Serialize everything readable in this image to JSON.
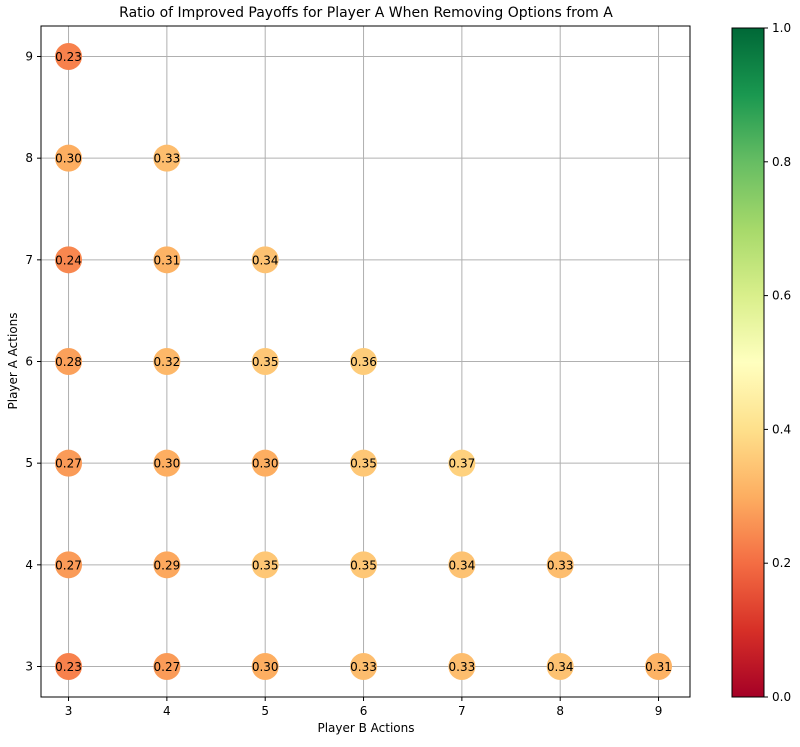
{
  "chart_data": {
    "type": "scatter",
    "title": "Ratio of Improved Payoffs for Player A When Removing Options from A",
    "xlabel": "Player B Actions",
    "ylabel": "Player A Actions",
    "xlim": [
      2.72,
      9.32
    ],
    "ylim": [
      2.7,
      9.3
    ],
    "xticks": [
      "3",
      "4",
      "5",
      "6",
      "7",
      "8",
      "9"
    ],
    "yticks": [
      "3",
      "4",
      "5",
      "6",
      "7",
      "8",
      "9"
    ],
    "grid": true,
    "colormap": "RdYlGn",
    "color_range": [
      0.0,
      1.0
    ],
    "colorbar_ticks": [
      "0.0",
      "0.2",
      "0.4",
      "0.6",
      "0.8",
      "1.0"
    ],
    "points": [
      {
        "x": 3,
        "y": 9,
        "value": 0.23,
        "label": "0.23"
      },
      {
        "x": 3,
        "y": 8,
        "value": 0.3,
        "label": "0.30"
      },
      {
        "x": 4,
        "y": 8,
        "value": 0.33,
        "label": "0.33"
      },
      {
        "x": 3,
        "y": 7,
        "value": 0.24,
        "label": "0.24"
      },
      {
        "x": 4,
        "y": 7,
        "value": 0.31,
        "label": "0.31"
      },
      {
        "x": 5,
        "y": 7,
        "value": 0.34,
        "label": "0.34"
      },
      {
        "x": 3,
        "y": 6,
        "value": 0.28,
        "label": "0.28"
      },
      {
        "x": 4,
        "y": 6,
        "value": 0.32,
        "label": "0.32"
      },
      {
        "x": 5,
        "y": 6,
        "value": 0.35,
        "label": "0.35"
      },
      {
        "x": 6,
        "y": 6,
        "value": 0.36,
        "label": "0.36"
      },
      {
        "x": 3,
        "y": 5,
        "value": 0.27,
        "label": "0.27"
      },
      {
        "x": 4,
        "y": 5,
        "value": 0.3,
        "label": "0.30"
      },
      {
        "x": 5,
        "y": 5,
        "value": 0.3,
        "label": "0.30"
      },
      {
        "x": 6,
        "y": 5,
        "value": 0.35,
        "label": "0.35"
      },
      {
        "x": 7,
        "y": 5,
        "value": 0.37,
        "label": "0.37"
      },
      {
        "x": 3,
        "y": 4,
        "value": 0.27,
        "label": "0.27"
      },
      {
        "x": 4,
        "y": 4,
        "value": 0.29,
        "label": "0.29"
      },
      {
        "x": 5,
        "y": 4,
        "value": 0.35,
        "label": "0.35"
      },
      {
        "x": 6,
        "y": 4,
        "value": 0.35,
        "label": "0.35"
      },
      {
        "x": 7,
        "y": 4,
        "value": 0.34,
        "label": "0.34"
      },
      {
        "x": 8,
        "y": 4,
        "value": 0.33,
        "label": "0.33"
      },
      {
        "x": 3,
        "y": 3,
        "value": 0.23,
        "label": "0.23"
      },
      {
        "x": 4,
        "y": 3,
        "value": 0.27,
        "label": "0.27"
      },
      {
        "x": 5,
        "y": 3,
        "value": 0.3,
        "label": "0.30"
      },
      {
        "x": 6,
        "y": 3,
        "value": 0.33,
        "label": "0.33"
      },
      {
        "x": 7,
        "y": 3,
        "value": 0.33,
        "label": "0.33"
      },
      {
        "x": 8,
        "y": 3,
        "value": 0.34,
        "label": "0.34"
      },
      {
        "x": 9,
        "y": 3,
        "value": 0.31,
        "label": "0.31"
      }
    ]
  }
}
